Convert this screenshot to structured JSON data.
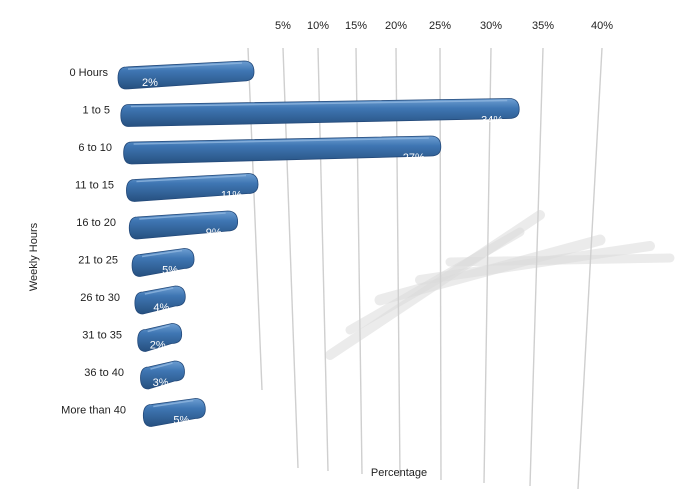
{
  "chart_data": {
    "type": "bar",
    "orientation": "horizontal",
    "style": "3d-perspective",
    "xlabel": "Percentage",
    "ylabel": "Weekly Hours",
    "xlim": [
      0,
      40
    ],
    "x_ticks": [
      "5%",
      "10%",
      "15%",
      "20%",
      "25%",
      "30%",
      "35%",
      "40%"
    ],
    "x_tick_values": [
      5,
      10,
      15,
      20,
      25,
      30,
      35,
      40
    ],
    "categories": [
      "0 Hours",
      "1 to 5",
      "6 to 10",
      "11 to 15",
      "16 to 20",
      "21 to 25",
      "26 to 30",
      "31 to 35",
      "36 to 40",
      "More than 40"
    ],
    "values": [
      2,
      34,
      27,
      11,
      9,
      5,
      4,
      2,
      3,
      5
    ],
    "data_labels": [
      "2%",
      "34%",
      "27%",
      "11%",
      "9%",
      "5%",
      "4%",
      "2%",
      "3%",
      "5%"
    ],
    "legend": "none",
    "grid": true,
    "colors": {
      "bar": "#3a70ad",
      "bar_top": "#5b91c8",
      "bar_dark": "#25507f",
      "grid": "#cfcfcf",
      "shadow": "#dcdcdc"
    }
  }
}
